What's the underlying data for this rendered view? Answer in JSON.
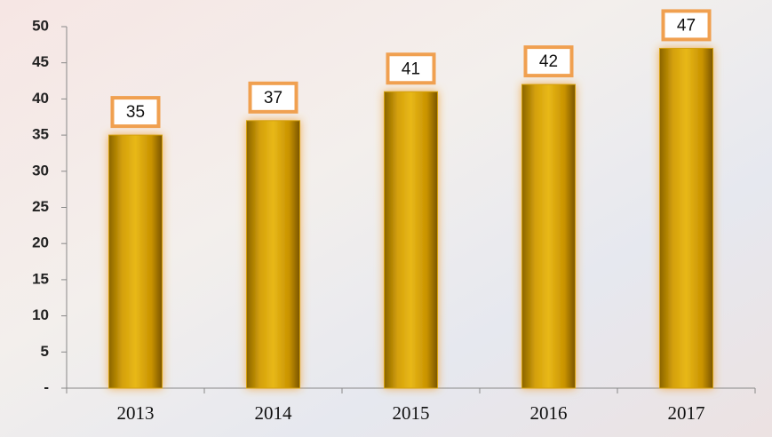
{
  "chart_data": {
    "type": "bar",
    "categories": [
      "2013",
      "2014",
      "2015",
      "2016",
      "2017"
    ],
    "values": [
      35,
      37,
      41,
      42,
      47
    ],
    "color": "#d4a00a",
    "label_border_color": "#f0a050",
    "ylim": [
      0,
      50
    ],
    "yticks": [
      {
        "value": 0,
        "label": "-"
      },
      5,
      10,
      15,
      20,
      25,
      30,
      35,
      40,
      45,
      50
    ],
    "grid": false
  }
}
